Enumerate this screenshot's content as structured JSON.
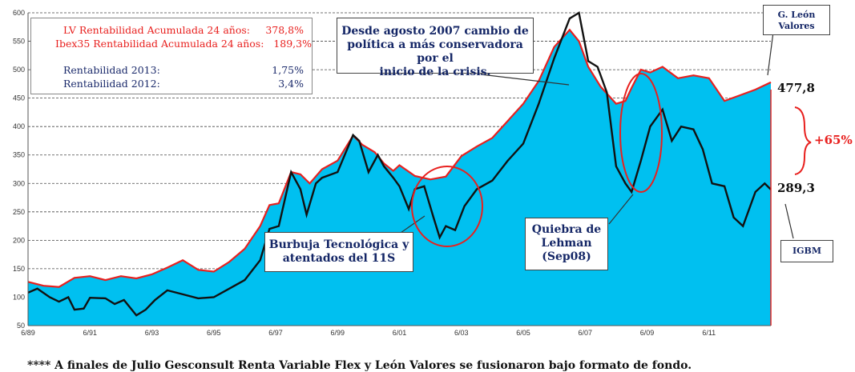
{
  "legend": {
    "lv_label": "LV Rentabilidad Acumulada 24 años:",
    "lv_value": "378,8%",
    "ibex_label": "Ibex35 Rentabilidad Acumulada 24 años:",
    "ibex_value": "189,3%",
    "r2013_label": "Rentabilidad 2013:",
    "r2013_value": "1,75%",
    "r2012_label": "Rentabilidad 2012:",
    "r2012_value": "3,4%"
  },
  "annotations": {
    "policy_line1": "Desde agosto 2007  cambio de",
    "policy_line2": "política a más conservadora por el",
    "policy_line3": "inicio de la crisis.",
    "bubble_line1": "Burbuja Tecnológica y",
    "bubble_line2": "atentados del 11S",
    "lehman_line1": "Quiebra de",
    "lehman_line2": "Lehman",
    "lehman_line3": "(Sep08)",
    "gleon_line1": "G. León",
    "gleon_line2": "Valores",
    "igbm": "IGBM",
    "diff": "+65%",
    "end_lv": "477,8",
    "end_igbm": "289,3"
  },
  "footnote": "**** A finales de Julio Gesconsult Renta Variable Flex y León Valores se fusionaron bajo formato de fondo.",
  "colors": {
    "area": "#00c0f0",
    "lv_line": "#e8201e",
    "igbm_line": "#111111",
    "ellipse": "#e8201e"
  },
  "chart_data": {
    "type": "area",
    "xlim": [
      1989.5,
      2013.5
    ],
    "ylim": [
      50,
      600
    ],
    "y_ticks": [
      50,
      100,
      150,
      200,
      250,
      300,
      350,
      400,
      450,
      500,
      550,
      600
    ],
    "x_tick_labels": [
      "6/89",
      "6/91",
      "6/93",
      "6/95",
      "6/97",
      "6/99",
      "6/01",
      "6/03",
      "6/05",
      "6/07",
      "6/09",
      "6/11"
    ],
    "x_tick_values": [
      1989.5,
      1991.5,
      1993.5,
      1995.5,
      1997.5,
      1999.5,
      2001.5,
      2003.5,
      2005.5,
      2007.5,
      2009.5,
      2011.5
    ],
    "grid": true,
    "series": [
      {
        "name": "G. León Valores",
        "values": [
          [
            1989.5,
            127
          ],
          [
            1990.0,
            120
          ],
          [
            1990.5,
            118
          ],
          [
            1991.0,
            134
          ],
          [
            1991.5,
            137
          ],
          [
            1992.0,
            130
          ],
          [
            1992.5,
            137
          ],
          [
            1993.0,
            133
          ],
          [
            1993.5,
            140
          ],
          [
            1994.0,
            152
          ],
          [
            1994.5,
            165
          ],
          [
            1995.0,
            148
          ],
          [
            1995.5,
            145
          ],
          [
            1996.0,
            162
          ],
          [
            1996.5,
            185
          ],
          [
            1997.0,
            225
          ],
          [
            1997.3,
            262
          ],
          [
            1997.6,
            265
          ],
          [
            1998.0,
            320
          ],
          [
            1998.3,
            316
          ],
          [
            1998.6,
            300
          ],
          [
            1999.0,
            325
          ],
          [
            1999.5,
            340
          ],
          [
            2000.0,
            384
          ],
          [
            2000.3,
            368
          ],
          [
            2000.7,
            355
          ],
          [
            2001.0,
            335
          ],
          [
            2001.3,
            322
          ],
          [
            2001.5,
            332
          ],
          [
            2002.0,
            313
          ],
          [
            2002.5,
            307
          ],
          [
            2003.0,
            312
          ],
          [
            2003.5,
            348
          ],
          [
            2004.0,
            365
          ],
          [
            2004.5,
            380
          ],
          [
            2005.0,
            410
          ],
          [
            2005.5,
            440
          ],
          [
            2006.0,
            480
          ],
          [
            2006.5,
            540
          ],
          [
            2007.0,
            570
          ],
          [
            2007.3,
            550
          ],
          [
            2007.6,
            505
          ],
          [
            2008.0,
            470
          ],
          [
            2008.5,
            440
          ],
          [
            2008.8,
            445
          ],
          [
            2009.0,
            468
          ],
          [
            2009.3,
            500
          ],
          [
            2009.6,
            495
          ],
          [
            2010.0,
            505
          ],
          [
            2010.5,
            485
          ],
          [
            2011.0,
            490
          ],
          [
            2011.5,
            485
          ],
          [
            2012.0,
            445
          ],
          [
            2012.5,
            455
          ],
          [
            2013.0,
            465
          ],
          [
            2013.5,
            477.8
          ]
        ]
      },
      {
        "name": "IGBM",
        "values": [
          [
            1989.5,
            108
          ],
          [
            1989.8,
            115
          ],
          [
            1990.2,
            100
          ],
          [
            1990.5,
            92
          ],
          [
            1990.8,
            100
          ],
          [
            1991.0,
            78
          ],
          [
            1991.3,
            80
          ],
          [
            1991.5,
            99
          ],
          [
            1992.0,
            98
          ],
          [
            1992.3,
            88
          ],
          [
            1992.6,
            95
          ],
          [
            1993.0,
            68
          ],
          [
            1993.3,
            78
          ],
          [
            1993.6,
            95
          ],
          [
            1994.0,
            112
          ],
          [
            1994.5,
            105
          ],
          [
            1995.0,
            98
          ],
          [
            1995.5,
            100
          ],
          [
            1996.0,
            115
          ],
          [
            1996.5,
            130
          ],
          [
            1997.0,
            165
          ],
          [
            1997.3,
            220
          ],
          [
            1997.6,
            225
          ],
          [
            1998.0,
            320
          ],
          [
            1998.3,
            290
          ],
          [
            1998.5,
            245
          ],
          [
            1998.8,
            300
          ],
          [
            1999.0,
            310
          ],
          [
            1999.5,
            320
          ],
          [
            2000.0,
            385
          ],
          [
            2000.2,
            375
          ],
          [
            2000.5,
            320
          ],
          [
            2000.8,
            350
          ],
          [
            2001.0,
            330
          ],
          [
            2001.3,
            310
          ],
          [
            2001.5,
            295
          ],
          [
            2001.8,
            255
          ],
          [
            2002.0,
            290
          ],
          [
            2002.3,
            295
          ],
          [
            2002.6,
            240
          ],
          [
            2002.8,
            205
          ],
          [
            2003.0,
            225
          ],
          [
            2003.3,
            218
          ],
          [
            2003.6,
            260
          ],
          [
            2004.0,
            290
          ],
          [
            2004.5,
            305
          ],
          [
            2005.0,
            340
          ],
          [
            2005.5,
            370
          ],
          [
            2006.0,
            440
          ],
          [
            2006.5,
            520
          ],
          [
            2007.0,
            590
          ],
          [
            2007.3,
            600
          ],
          [
            2007.6,
            515
          ],
          [
            2007.9,
            505
          ],
          [
            2008.2,
            460
          ],
          [
            2008.5,
            330
          ],
          [
            2008.8,
            300
          ],
          [
            2009.0,
            285
          ],
          [
            2009.3,
            340
          ],
          [
            2009.6,
            400
          ],
          [
            2010.0,
            430
          ],
          [
            2010.3,
            375
          ],
          [
            2010.6,
            400
          ],
          [
            2011.0,
            395
          ],
          [
            2011.3,
            360
          ],
          [
            2011.6,
            300
          ],
          [
            2012.0,
            295
          ],
          [
            2012.3,
            240
          ],
          [
            2012.6,
            225
          ],
          [
            2013.0,
            285
          ],
          [
            2013.3,
            300
          ],
          [
            2013.5,
            289.3
          ]
        ]
      }
    ]
  }
}
